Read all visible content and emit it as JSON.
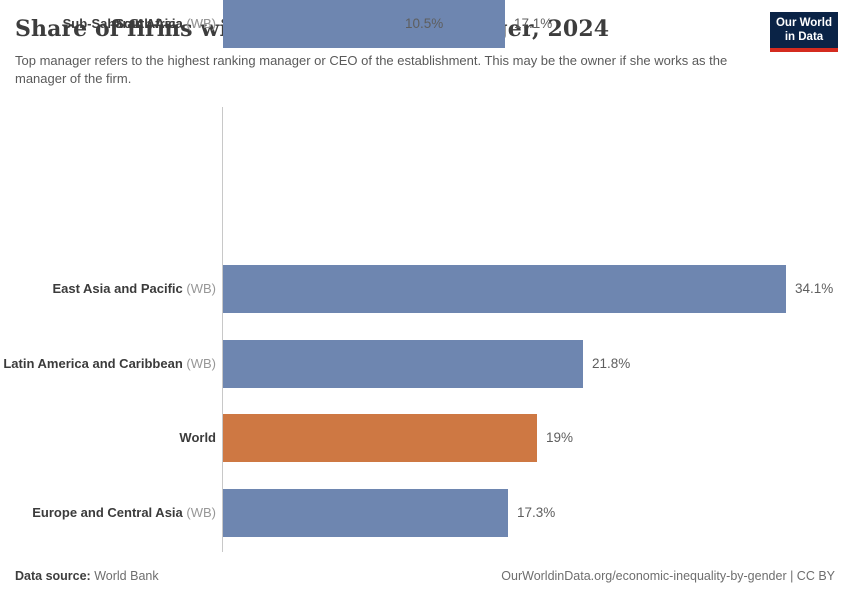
{
  "header": {
    "title": "Share of firms with a female top manager, 2024",
    "subtitle": "Top manager refers to the highest ranking manager or CEO of the establishment. This may be the owner if she works as the manager of the firm.",
    "logo": {
      "line1": "Our World",
      "line2": "in Data"
    }
  },
  "chart_data": {
    "type": "bar",
    "orientation": "horizontal",
    "title": "Share of firms with a female top manager, 2024",
    "unit": "%",
    "xlim": [
      0,
      34.1
    ],
    "grid": false,
    "legend": "none",
    "rows": [
      {
        "entity": "East Asia and Pacific",
        "suffix": "(WB)",
        "value": 34.1,
        "value_label": "34.1%",
        "highlight": false
      },
      {
        "entity": "Latin America and Caribbean",
        "suffix": "(WB)",
        "value": 21.8,
        "value_label": "21.8%",
        "highlight": false
      },
      {
        "entity": "World",
        "suffix": "",
        "value": 19,
        "value_label": "19%",
        "highlight": true
      },
      {
        "entity": "Europe and Central Asia",
        "suffix": "(WB)",
        "value": 17.3,
        "value_label": "17.3%",
        "highlight": false
      },
      {
        "entity": "Sub-Saharan Africa",
        "suffix": "(WB)",
        "value": 17.1,
        "value_label": "17.1%",
        "highlight": false
      },
      {
        "entity": "South Asia",
        "suffix": "(WB)",
        "value": 10.5,
        "value_label": "10.5%",
        "highlight": false
      }
    ],
    "colors": {
      "bar": "#6e86b0",
      "highlight": "#ce7843",
      "axis": "#c8c8c8"
    }
  },
  "footer": {
    "source_label": "Data source:",
    "source_value": "World Bank",
    "link": "OurWorldinData.org/economic-inequality-by-gender | CC BY"
  }
}
